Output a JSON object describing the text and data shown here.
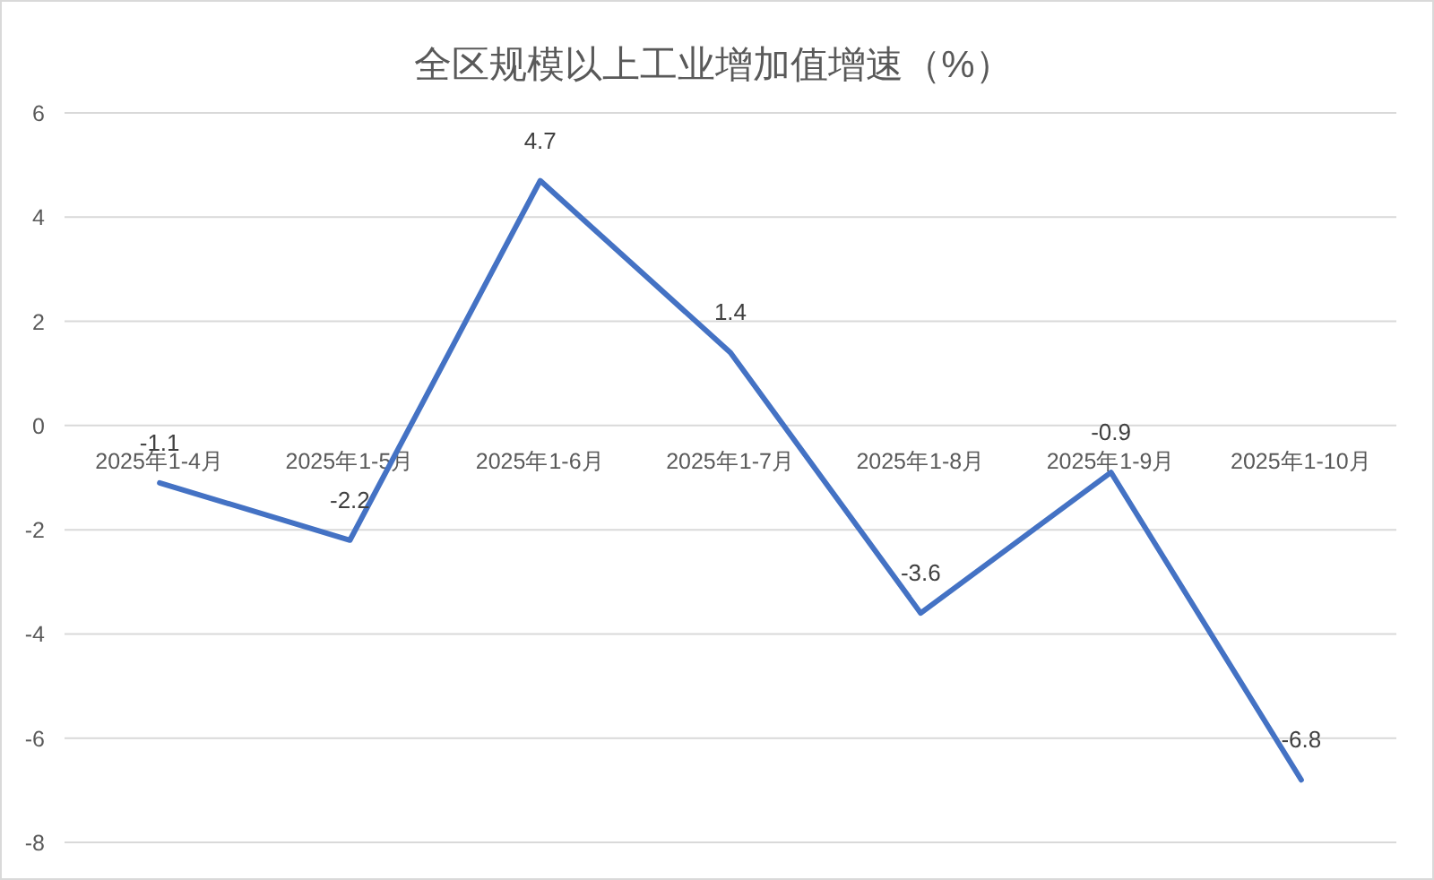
{
  "chart_data": {
    "type": "line",
    "title": "全区规模以上工业增加值增速（%）",
    "categories": [
      "2025年1-4月",
      "2025年1-5月",
      "2025年1-6月",
      "2025年1-7月",
      "2025年1-8月",
      "2025年1-9月",
      "2025年1-10月"
    ],
    "series": [
      {
        "color": "#4472c4",
        "values": [
          -1.1,
          -2.2,
          4.7,
          1.4,
          -3.6,
          -0.9,
          -6.8
        ]
      }
    ],
    "ylim": [
      -8,
      6
    ],
    "yticks": [
      -8,
      -6,
      -4,
      -2,
      0,
      2,
      4,
      6
    ],
    "grid": "y",
    "data_labels": true,
    "line_style": "solid"
  }
}
